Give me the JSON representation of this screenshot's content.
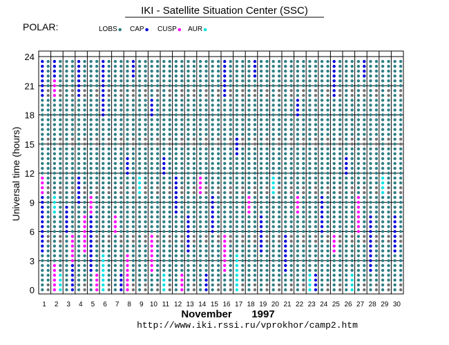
{
  "chart_data": {
    "type": "scatter",
    "title": "IKI - Satellite Situation Center (SSC)",
    "satellite": "POLAR:",
    "legend": [
      {
        "label": "LOBS",
        "color": "#2f7f86"
      },
      {
        "label": "CAP",
        "color": "#0000dd"
      },
      {
        "label": "CUSP",
        "color": "#ff00ff"
      },
      {
        "label": "AUR",
        "color": "#00e5e5"
      }
    ],
    "extra_color": "#707070",
    "ylabel": "Universal time (hours)",
    "xlabel_month": "November",
    "xlabel_year": "1997",
    "url": "http://www.iki.rssi.ru/vprokhor/camp2.htm",
    "ylim": [
      0,
      24
    ],
    "yticks": [
      0,
      3,
      6,
      9,
      12,
      15,
      18,
      21,
      24
    ],
    "days": [
      1,
      2,
      3,
      4,
      5,
      6,
      7,
      8,
      9,
      10,
      11,
      12,
      13,
      14,
      15,
      16,
      17,
      18,
      19,
      20,
      21,
      22,
      23,
      24,
      25,
      26,
      27,
      28,
      29,
      30
    ],
    "samples_per_day": 2,
    "timeline_step_hours": 0.5,
    "orbits": [
      {
        "day": 1,
        "segments": [
          [
            "LOBS",
            0,
            4
          ],
          [
            "CAP",
            4,
            10
          ],
          [
            "CUSP",
            10,
            12
          ],
          [
            "LOBS",
            12,
            20
          ],
          [
            "CAP",
            20,
            24
          ]
        ]
      },
      {
        "day": 1.5,
        "segments": [
          [
            "LOBS",
            0,
            24
          ]
        ]
      },
      {
        "day": 2,
        "segments": [
          [
            "CUSP",
            0,
            3
          ],
          [
            "LOBS",
            3,
            8
          ],
          [
            "AUR",
            8,
            10
          ],
          [
            "LOBS",
            10,
            20
          ],
          [
            "CUSP",
            20,
            22
          ],
          [
            "CAP",
            22,
            24
          ]
        ]
      },
      {
        "day": 2.5,
        "segments": [
          [
            "AUR",
            0,
            2
          ],
          [
            "LOBS",
            2,
            24
          ]
        ]
      },
      {
        "day": 3,
        "segments": [
          [
            "LOBS",
            0,
            6
          ],
          [
            "CAP",
            6,
            9
          ],
          [
            "LOBS",
            9,
            24
          ]
        ]
      },
      {
        "day": 3.5,
        "segments": [
          [
            "CAP",
            0,
            3
          ],
          [
            "CUSP",
            3,
            6
          ],
          [
            "LOBS",
            6,
            24
          ]
        ]
      },
      {
        "day": 4,
        "segments": [
          [
            "LOBS",
            0,
            9
          ],
          [
            "CAP",
            9,
            12
          ],
          [
            "LOBS",
            12,
            20
          ],
          [
            "CAP",
            20,
            24
          ]
        ]
      },
      {
        "day": 4.5,
        "segments": [
          [
            "LOBS",
            0,
            4
          ],
          [
            "CUSP",
            4,
            8
          ],
          [
            "LOBS",
            8,
            24
          ]
        ]
      },
      {
        "day": 5,
        "segments": [
          [
            "LOBS",
            0,
            2
          ],
          [
            "CAP",
            2,
            8
          ],
          [
            "CUSP",
            8,
            10
          ],
          [
            "LOBS",
            10,
            24
          ]
        ]
      },
      {
        "day": 5.5,
        "segments": [
          [
            "CUSP",
            0,
            2
          ],
          [
            "LOBS",
            2,
            24
          ]
        ]
      },
      {
        "day": 6,
        "segments": [
          [
            "AUR",
            0,
            4
          ],
          [
            "LOBS",
            4,
            18
          ],
          [
            "CAP",
            18,
            24
          ]
        ]
      },
      {
        "day": 6.5,
        "segments": [
          [
            "LOBS",
            0,
            24
          ]
        ]
      },
      {
        "day": 7,
        "segments": [
          [
            "LOBS",
            0,
            6
          ],
          [
            "CUSP",
            6,
            8
          ],
          [
            "LOBS",
            8,
            24
          ]
        ]
      },
      {
        "day": 7.5,
        "segments": [
          [
            "CAP",
            0,
            2
          ],
          [
            "LOBS",
            2,
            24
          ]
        ]
      },
      {
        "day": 8,
        "segments": [
          [
            "CUSP",
            0,
            4
          ],
          [
            "LOBS",
            4,
            12
          ],
          [
            "CAP",
            12,
            14
          ],
          [
            "LOBS",
            14,
            24
          ]
        ]
      },
      {
        "day": 8.5,
        "segments": [
          [
            "LOBS",
            0,
            22
          ],
          [
            "CAP",
            22,
            24
          ]
        ]
      },
      {
        "day": 9,
        "segments": [
          [
            "LOBS",
            0,
            10
          ],
          [
            "AUR",
            10,
            12
          ],
          [
            "LOBS",
            12,
            24
          ]
        ]
      },
      {
        "day": 9.5,
        "segments": [
          [
            "LOBS",
            0,
            24
          ]
        ]
      },
      {
        "day": 10,
        "segments": [
          [
            "LOBS",
            0,
            2
          ],
          [
            "CUSP",
            2,
            6
          ],
          [
            "LOBS",
            6,
            18
          ],
          [
            "CAP",
            18,
            20
          ],
          [
            "LOBS",
            20,
            24
          ]
        ]
      },
      {
        "day": 10.5,
        "segments": [
          [
            "LOBS",
            0,
            24
          ]
        ]
      },
      {
        "day": 11,
        "segments": [
          [
            "AUR",
            0,
            2
          ],
          [
            "LOBS",
            2,
            12
          ],
          [
            "CAP",
            12,
            14
          ],
          [
            "LOBS",
            14,
            24
          ]
        ]
      },
      {
        "day": 11.5,
        "segments": [
          [
            "LOBS",
            0,
            24
          ]
        ]
      },
      {
        "day": 12,
        "segments": [
          [
            "LOBS",
            0,
            8
          ],
          [
            "CAP",
            8,
            12
          ],
          [
            "LOBS",
            12,
            24
          ]
        ]
      },
      {
        "day": 12.5,
        "segments": [
          [
            "CUSP",
            0,
            2
          ],
          [
            "LOBS",
            2,
            24
          ]
        ]
      },
      {
        "day": 13,
        "segments": [
          [
            "LOBS",
            0,
            4
          ],
          [
            "CAP",
            4,
            8
          ],
          [
            "LOBS",
            8,
            24
          ]
        ]
      },
      {
        "day": 13.5,
        "segments": [
          [
            "LOBS",
            0,
            24
          ]
        ]
      },
      {
        "day": 14,
        "segments": [
          [
            "LOBS",
            0,
            10
          ],
          [
            "CUSP",
            10,
            12
          ],
          [
            "LOBS",
            12,
            24
          ]
        ]
      },
      {
        "day": 14.5,
        "segments": [
          [
            "CAP",
            0,
            2
          ],
          [
            "LOBS",
            2,
            24
          ]
        ]
      },
      {
        "day": 15,
        "segments": [
          [
            "LOBS",
            0,
            6
          ],
          [
            "CAP",
            6,
            10
          ],
          [
            "LOBS",
            10,
            24
          ]
        ]
      },
      {
        "day": 15.5,
        "segments": [
          [
            "LOBS",
            0,
            24
          ]
        ]
      },
      {
        "day": 16,
        "segments": [
          [
            "LOBS",
            0,
            2
          ],
          [
            "CUSP",
            2,
            6
          ],
          [
            "LOBS",
            6,
            20
          ],
          [
            "CAP",
            20,
            24
          ]
        ]
      },
      {
        "day": 16.5,
        "segments": [
          [
            "LOBS",
            0,
            24
          ]
        ]
      },
      {
        "day": 17,
        "segments": [
          [
            "AUR",
            0,
            4
          ],
          [
            "LOBS",
            4,
            14
          ],
          [
            "CAP",
            14,
            16
          ],
          [
            "LOBS",
            16,
            24
          ]
        ]
      },
      {
        "day": 17.5,
        "segments": [
          [
            "LOBS",
            0,
            24
          ]
        ]
      },
      {
        "day": 18,
        "segments": [
          [
            "LOBS",
            0,
            8
          ],
          [
            "CUSP",
            8,
            10
          ],
          [
            "LOBS",
            10,
            24
          ]
        ]
      },
      {
        "day": 18.5,
        "segments": [
          [
            "LOBS",
            0,
            22
          ],
          [
            "CAP",
            22,
            24
          ]
        ]
      },
      {
        "day": 19,
        "segments": [
          [
            "LOBS",
            0,
            4
          ],
          [
            "CAP",
            4,
            8
          ],
          [
            "LOBS",
            8,
            24
          ]
        ]
      },
      {
        "day": 19.5,
        "segments": [
          [
            "LOBS",
            0,
            24
          ]
        ]
      },
      {
        "day": 20,
        "segments": [
          [
            "LOBS",
            0,
            10
          ],
          [
            "AUR",
            10,
            12
          ],
          [
            "LOBS",
            12,
            24
          ]
        ]
      },
      {
        "day": 20.5,
        "segments": [
          [
            "LOBS",
            0,
            24
          ]
        ]
      },
      {
        "day": 21,
        "segments": [
          [
            "LOBS",
            0,
            2
          ],
          [
            "CAP",
            2,
            6
          ],
          [
            "LOBS",
            6,
            24
          ]
        ]
      },
      {
        "day": 21.5,
        "segments": [
          [
            "LOBS",
            0,
            24
          ]
        ]
      },
      {
        "day": 22,
        "segments": [
          [
            "LOBS",
            0,
            8
          ],
          [
            "CUSP",
            8,
            10
          ],
          [
            "LOBS",
            10,
            18
          ],
          [
            "CAP",
            18,
            20
          ],
          [
            "LOBS",
            20,
            24
          ]
        ]
      },
      {
        "day": 22.5,
        "segments": [
          [
            "LOBS",
            0,
            24
          ]
        ]
      },
      {
        "day": 23,
        "segments": [
          [
            "AUR",
            0,
            2
          ],
          [
            "LOBS",
            2,
            24
          ]
        ]
      },
      {
        "day": 23.5,
        "segments": [
          [
            "CAP",
            0,
            2
          ],
          [
            "LOBS",
            2,
            24
          ]
        ]
      },
      {
        "day": 24,
        "segments": [
          [
            "LOBS",
            0,
            6
          ],
          [
            "CAP",
            6,
            10
          ],
          [
            "LOBS",
            10,
            24
          ]
        ]
      },
      {
        "day": 24.5,
        "segments": [
          [
            "LOBS",
            0,
            24
          ]
        ]
      },
      {
        "day": 25,
        "segments": [
          [
            "LOBS",
            0,
            4
          ],
          [
            "CUSP",
            4,
            6
          ],
          [
            "LOBS",
            6,
            20
          ],
          [
            "CAP",
            20,
            24
          ]
        ]
      },
      {
        "day": 25.5,
        "segments": [
          [
            "LOBS",
            0,
            24
          ]
        ]
      },
      {
        "day": 26,
        "segments": [
          [
            "LOBS",
            0,
            12
          ],
          [
            "CAP",
            12,
            14
          ],
          [
            "LOBS",
            14,
            24
          ]
        ]
      },
      {
        "day": 26.5,
        "segments": [
          [
            "AUR",
            0,
            2
          ],
          [
            "LOBS",
            2,
            24
          ]
        ]
      },
      {
        "day": 27,
        "segments": [
          [
            "LOBS",
            0,
            6
          ],
          [
            "CUSP",
            6,
            10
          ],
          [
            "LOBS",
            10,
            24
          ]
        ]
      },
      {
        "day": 27.5,
        "segments": [
          [
            "LOBS",
            0,
            22
          ],
          [
            "CAP",
            22,
            24
          ]
        ]
      },
      {
        "day": 28,
        "segments": [
          [
            "LOBS",
            0,
            2
          ],
          [
            "CAP",
            2,
            8
          ],
          [
            "LOBS",
            8,
            24
          ]
        ]
      },
      {
        "day": 28.5,
        "segments": [
          [
            "LOBS",
            0,
            24
          ]
        ]
      },
      {
        "day": 29,
        "segments": [
          [
            "LOBS",
            0,
            10
          ],
          [
            "AUR",
            10,
            12
          ],
          [
            "LOBS",
            12,
            24
          ]
        ]
      },
      {
        "day": 29.5,
        "segments": [
          [
            "LOBS",
            0,
            24
          ]
        ]
      },
      {
        "day": 30,
        "segments": [
          [
            "LOBS",
            0,
            4
          ],
          [
            "CAP",
            4,
            8
          ],
          [
            "LOBS",
            8,
            24
          ]
        ]
      },
      {
        "day": 30.5,
        "segments": [
          [
            "LOBS",
            0,
            24
          ]
        ]
      }
    ]
  }
}
